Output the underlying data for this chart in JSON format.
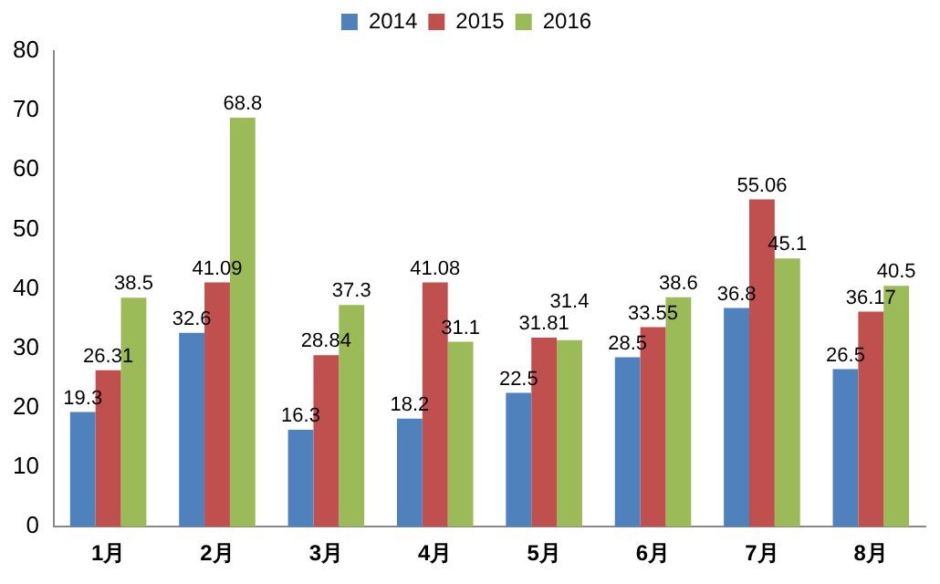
{
  "chart_data": {
    "type": "bar",
    "categories": [
      "1月",
      "2月",
      "3月",
      "4月",
      "5月",
      "6月",
      "7月",
      "8月"
    ],
    "series": [
      {
        "name": "2014",
        "color": "#4f81bd",
        "values": [
          19.3,
          32.6,
          16.3,
          18.2,
          22.5,
          28.5,
          36.8,
          26.5
        ]
      },
      {
        "name": "2015",
        "color": "#c0504d",
        "values": [
          26.31,
          41.09,
          28.84,
          41.08,
          31.81,
          33.55,
          55.06,
          36.17
        ]
      },
      {
        "name": "2016",
        "color": "#9bbb59",
        "values": [
          38.5,
          68.8,
          37.3,
          31.1,
          31.4,
          38.6,
          45.1,
          40.5
        ]
      }
    ],
    "ylim": [
      0,
      80
    ],
    "yticks": [
      0,
      10,
      20,
      30,
      40,
      50,
      60,
      70,
      80
    ],
    "grid": false,
    "legend": "top",
    "data_labels": true
  }
}
